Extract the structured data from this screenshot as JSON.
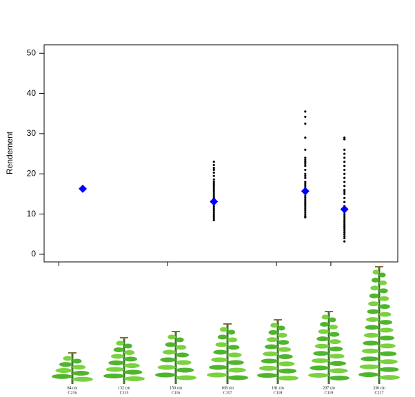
{
  "chart_data": {
    "type": "scatter",
    "y_label": "Rendement",
    "xlim": [
      0.73,
      7.23
    ],
    "xticks": [
      1,
      3,
      5,
      6
    ],
    "ylim": [
      -1.9,
      52.1
    ],
    "yticks": [
      0,
      10,
      20,
      30,
      40,
      50
    ],
    "series": [
      {
        "color": "#000000",
        "marker": "dot",
        "x": [
          3.85,
          3.85,
          3.85,
          3.85,
          3.85,
          3.85,
          3.85,
          3.85,
          3.85,
          3.85,
          3.85,
          3.85,
          3.85,
          3.85,
          3.85,
          3.85,
          3.85,
          3.85,
          3.85,
          3.85,
          3.85,
          3.85,
          3.85,
          3.85,
          3.85,
          3.85,
          3.85
        ],
        "values": [
          23.0,
          22.2,
          21.5,
          21.0,
          20.3,
          19.5,
          18.6,
          18.0,
          17.5,
          17.0,
          16.5,
          16.0,
          15.5,
          15.0,
          14.5,
          14.0,
          13.5,
          13.0,
          12.5,
          12.0,
          11.5,
          11.0,
          10.5,
          10.0,
          9.5,
          9.0,
          8.5
        ]
      },
      {
        "color": "#000000",
        "marker": "dot",
        "x": [
          5.53,
          5.53,
          5.53,
          5.53,
          5.53,
          5.53,
          5.53,
          5.53,
          5.53,
          5.53,
          5.53,
          5.53,
          5.53,
          5.53,
          5.53,
          5.53,
          5.53,
          5.53,
          5.53,
          5.53,
          5.53,
          5.53,
          5.53,
          5.53,
          5.53,
          5.53,
          5.53,
          5.53,
          5.53,
          5.53,
          5.53,
          5.53,
          5.53
        ],
        "values": [
          35.5,
          34.2,
          32.5,
          29.0,
          26.0,
          24.0,
          23.5,
          23.0,
          22.5,
          22.0,
          21.0,
          20.0,
          19.5,
          19.0,
          18.0,
          17.5,
          17.0,
          16.5,
          16.0,
          15.5,
          15.0,
          14.5,
          14.0,
          13.5,
          13.0,
          12.5,
          12.0,
          11.5,
          11.0,
          10.5,
          10.0,
          9.5,
          9.2
        ]
      },
      {
        "color": "#000000",
        "marker": "dot",
        "x": [
          6.25,
          6.25,
          6.25,
          6.25,
          6.25,
          6.25,
          6.25,
          6.25,
          6.25,
          6.25,
          6.25,
          6.25,
          6.25,
          6.25,
          6.25,
          6.25,
          6.25,
          6.25,
          6.25,
          6.25,
          6.25,
          6.25,
          6.25,
          6.25,
          6.25,
          6.25,
          6.25,
          6.25,
          6.25,
          6.25,
          6.25,
          6.25,
          6.25
        ],
        "values": [
          29.0,
          28.6,
          26.0,
          25.0,
          24.0,
          23.0,
          22.0,
          21.0,
          20.0,
          19.0,
          18.0,
          17.0,
          16.0,
          15.5,
          15.0,
          14.0,
          13.0,
          12.0,
          10.5,
          10.0,
          9.5,
          9.0,
          8.5,
          8.0,
          7.5,
          7.0,
          6.5,
          6.0,
          5.5,
          5.0,
          4.5,
          4.0,
          3.2
        ]
      },
      {
        "color": "#0000ff",
        "marker": "diamond",
        "x": [
          1.44,
          3.85,
          5.53,
          6.25
        ],
        "values": [
          16.3,
          13.1,
          15.7,
          11.2
        ]
      }
    ]
  },
  "plants": [
    {
      "height": "84 cm",
      "code": "C216"
    },
    {
      "height": "132 cm",
      "code": "C115"
    },
    {
      "height": "150 cm",
      "code": "C116"
    },
    {
      "height": "168 cm",
      "code": "C117"
    },
    {
      "height": "181 cm",
      "code": "C118"
    },
    {
      "height": "207 cm",
      "code": "C119"
    },
    {
      "height": "336 cm",
      "code": "C217"
    }
  ]
}
